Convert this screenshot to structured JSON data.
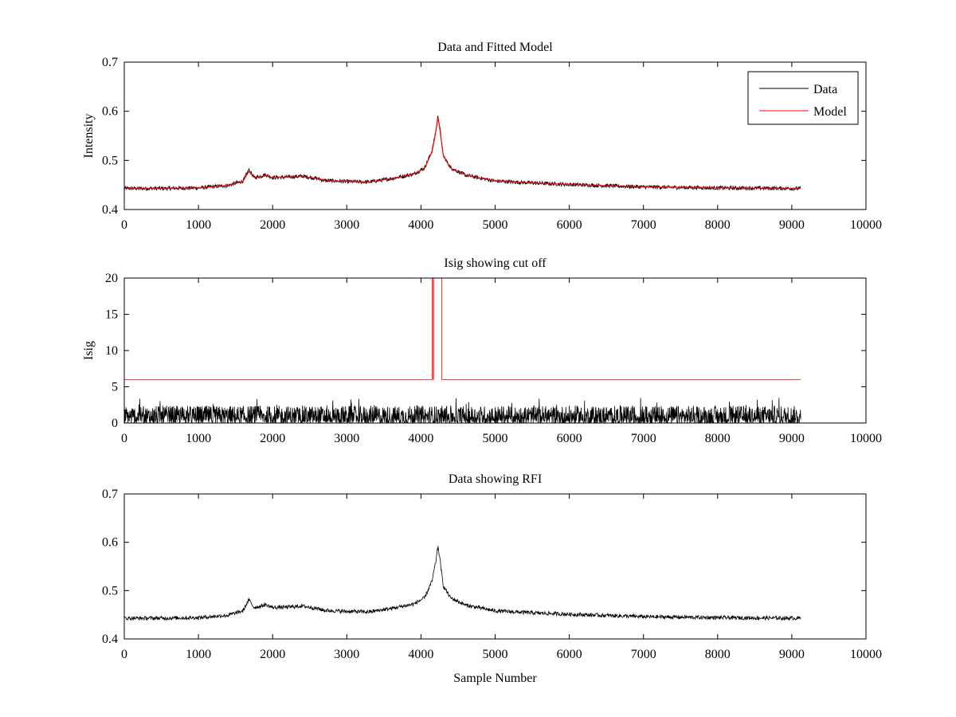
{
  "chart_data": [
    {
      "type": "line",
      "title": "Data and Fitted Model",
      "xlabel": "",
      "ylabel": "Intensity",
      "xlim": [
        0,
        10000
      ],
      "ylim": [
        0.4,
        0.7
      ],
      "xticks": [
        0,
        1000,
        2000,
        3000,
        4000,
        5000,
        6000,
        7000,
        8000,
        9000,
        10000
      ],
      "yticks": [
        0.4,
        0.5,
        0.6,
        0.7
      ],
      "ytick_labels": [
        "0.4",
        "0.5",
        "0.6",
        "0.7"
      ],
      "legend": {
        "position": "top-right",
        "entries": [
          "Data",
          "Model"
        ]
      },
      "series": [
        {
          "name": "Data",
          "color": "#000000",
          "style": "noisy",
          "noise": 0.004,
          "x": [
            0,
            500,
            1000,
            1400,
            1600,
            1680,
            1750,
            1850,
            1900,
            2000,
            2200,
            2400,
            2600,
            2700,
            3000,
            3300,
            3600,
            3900,
            4050,
            4150,
            4200,
            4230,
            4260,
            4300,
            4400,
            4600,
            5000,
            5500,
            6000,
            7000,
            8000,
            9000,
            9120
          ],
          "values": [
            0.443,
            0.443,
            0.444,
            0.449,
            0.458,
            0.481,
            0.465,
            0.468,
            0.471,
            0.465,
            0.466,
            0.468,
            0.463,
            0.459,
            0.457,
            0.456,
            0.463,
            0.472,
            0.485,
            0.52,
            0.56,
            0.592,
            0.56,
            0.51,
            0.485,
            0.47,
            0.458,
            0.454,
            0.451,
            0.446,
            0.444,
            0.443,
            0.443
          ]
        },
        {
          "name": "Model",
          "color": "#ff0000",
          "style": "smooth",
          "x": [
            0,
            500,
            1000,
            1400,
            1600,
            1680,
            1750,
            1850,
            1900,
            2000,
            2200,
            2400,
            2600,
            2700,
            3000,
            3300,
            3600,
            3900,
            4050,
            4150,
            4200,
            4230,
            4260,
            4300,
            4400,
            4600,
            5000,
            5500,
            6000,
            7000,
            8000,
            9000,
            9120
          ],
          "values": [
            0.443,
            0.443,
            0.444,
            0.449,
            0.457,
            0.478,
            0.465,
            0.467,
            0.47,
            0.465,
            0.466,
            0.467,
            0.463,
            0.459,
            0.457,
            0.456,
            0.463,
            0.472,
            0.484,
            0.518,
            0.558,
            0.59,
            0.558,
            0.51,
            0.484,
            0.47,
            0.458,
            0.454,
            0.451,
            0.446,
            0.444,
            0.443,
            0.443
          ]
        }
      ]
    },
    {
      "type": "line",
      "title": "Isig showing cut off",
      "xlabel": "",
      "ylabel": "Isig",
      "xlim": [
        0,
        10000
      ],
      "ylim": [
        0,
        20
      ],
      "xticks": [
        0,
        1000,
        2000,
        3000,
        4000,
        5000,
        6000,
        7000,
        8000,
        9000,
        10000
      ],
      "yticks": [
        0,
        5,
        10,
        15,
        20
      ],
      "ytick_labels": [
        "0",
        "5",
        "10",
        "15",
        "20"
      ],
      "series": [
        {
          "name": "Isig",
          "color": "#000000",
          "style": "spiky",
          "x": [
            0,
            9120
          ],
          "values": [
            0.8,
            0.8
          ],
          "spike_max": 3.5
        },
        {
          "name": "Cut off",
          "color": "#ff0000",
          "style": "step",
          "x": [
            0,
            4150,
            4150,
            4165,
            4165,
            4280,
            4280,
            9120
          ],
          "values": [
            6,
            6,
            20,
            20,
            6,
            6,
            20,
            6
          ]
        }
      ]
    },
    {
      "type": "line",
      "title": "Data showing RFI",
      "xlabel": "Sample Number",
      "ylabel": "",
      "xlim": [
        0,
        10000
      ],
      "ylim": [
        0.4,
        0.7
      ],
      "xticks": [
        0,
        1000,
        2000,
        3000,
        4000,
        5000,
        6000,
        7000,
        8000,
        9000,
        10000
      ],
      "yticks": [
        0.4,
        0.5,
        0.6,
        0.7
      ],
      "ytick_labels": [
        "0.4",
        "0.5",
        "0.6",
        "0.7"
      ],
      "series": [
        {
          "name": "Data",
          "color": "#000000",
          "style": "noisy",
          "noise": 0.004,
          "x": [
            0,
            500,
            1000,
            1400,
            1600,
            1680,
            1750,
            1850,
            1900,
            2000,
            2200,
            2400,
            2600,
            2700,
            3000,
            3300,
            3600,
            3900,
            4050,
            4150,
            4200,
            4230,
            4260,
            4300,
            4400,
            4600,
            5000,
            5500,
            6000,
            7000,
            8000,
            9000,
            9120
          ],
          "values": [
            0.443,
            0.443,
            0.444,
            0.449,
            0.458,
            0.481,
            0.465,
            0.468,
            0.471,
            0.465,
            0.466,
            0.468,
            0.463,
            0.459,
            0.457,
            0.456,
            0.463,
            0.472,
            0.485,
            0.52,
            0.56,
            0.592,
            0.56,
            0.51,
            0.485,
            0.47,
            0.458,
            0.454,
            0.451,
            0.446,
            0.444,
            0.443,
            0.443
          ]
        }
      ]
    }
  ]
}
